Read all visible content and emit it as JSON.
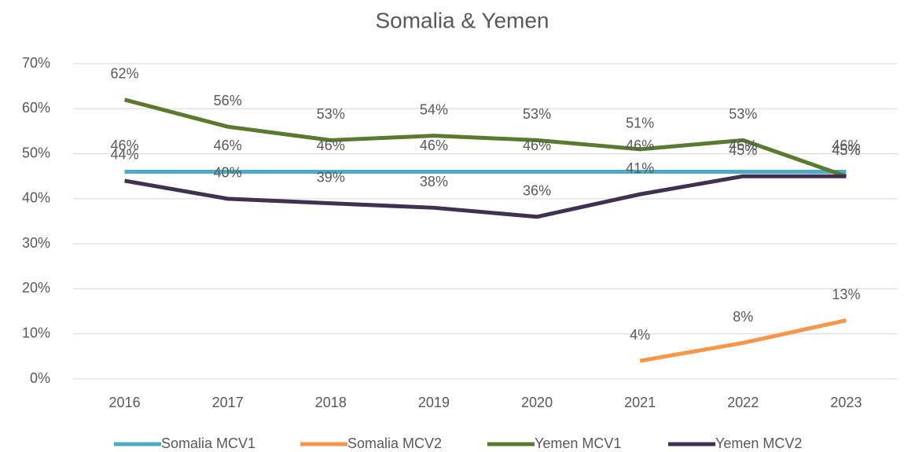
{
  "chart_data": {
    "type": "line",
    "title": "Somalia & Yemen",
    "categories": [
      "2016",
      "2017",
      "2018",
      "2019",
      "2020",
      "2021",
      "2022",
      "2023"
    ],
    "series": [
      {
        "name": "Somalia MCV1",
        "color": "#4bacc6",
        "values": [
          46,
          46,
          46,
          46,
          46,
          46,
          46,
          46
        ],
        "value_labels": [
          "46%",
          "46%",
          "46%",
          "46%",
          "46%",
          "46%",
          "46%",
          "46%"
        ]
      },
      {
        "name": "Somalia MCV2",
        "color": "#f79646",
        "values": [
          null,
          null,
          null,
          null,
          null,
          4,
          8,
          13
        ],
        "value_labels": [
          null,
          null,
          null,
          null,
          null,
          "4%",
          "8%",
          "13%"
        ]
      },
      {
        "name": "Yemen MCV1",
        "color": "#5a7a2e",
        "values": [
          62,
          56,
          53,
          54,
          53,
          51,
          53,
          45
        ],
        "value_labels": [
          "62%",
          "56%",
          "53%",
          "54%",
          "53%",
          "51%",
          "53%",
          "45%"
        ]
      },
      {
        "name": "Yemen MCV2",
        "color": "#403152",
        "values": [
          44,
          40,
          39,
          38,
          36,
          41,
          45,
          45
        ],
        "value_labels": [
          "44%",
          "40%",
          "39%",
          "38%",
          "36%",
          "41%",
          "45%",
          "45%"
        ]
      }
    ],
    "ylim": [
      0,
      70
    ],
    "yticks": [
      {
        "value": 0,
        "label": "0%"
      },
      {
        "value": 10,
        "label": "10%"
      },
      {
        "value": 20,
        "label": "20%"
      },
      {
        "value": 30,
        "label": "30%"
      },
      {
        "value": 40,
        "label": "40%"
      },
      {
        "value": 50,
        "label": "50%"
      },
      {
        "value": 60,
        "label": "60%"
      },
      {
        "value": 70,
        "label": "70%"
      }
    ],
    "grid": true,
    "legend": "bottom"
  }
}
